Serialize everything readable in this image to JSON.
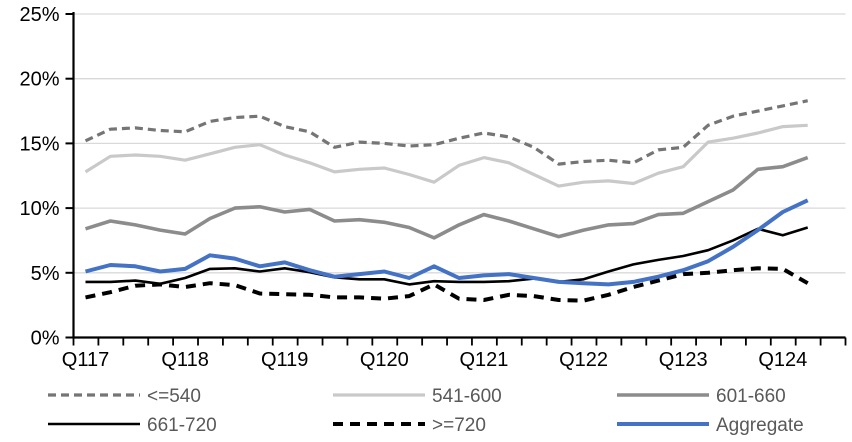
{
  "chart_data": {
    "type": "line",
    "title": "",
    "xlabel": "",
    "ylabel": "",
    "ylim": [
      0,
      25
    ],
    "y_ticks": [
      0,
      5,
      10,
      15,
      20,
      25
    ],
    "y_tick_suffix": "%",
    "grid": "horizontal",
    "legend_position": "bottom",
    "x_tick_labels": [
      "Q117",
      "Q118",
      "Q119",
      "Q120",
      "Q121",
      "Q122",
      "Q123",
      "Q124"
    ],
    "points_per_tick_label": 4,
    "n_points": 30,
    "series": [
      {
        "name": "<=540",
        "color": "#757575",
        "dash": "8 5",
        "width": 3.2,
        "values": [
          15.2,
          16.1,
          16.2,
          16.0,
          15.9,
          16.7,
          17.0,
          17.1,
          16.3,
          15.9,
          14.7,
          15.1,
          15.0,
          14.8,
          14.9,
          15.4,
          15.8,
          15.5,
          14.7,
          13.4,
          13.6,
          13.7,
          13.5,
          14.5,
          14.7,
          16.4,
          17.1,
          17.5,
          17.9,
          18.3
        ]
      },
      {
        "name": "541-600",
        "color": "#c9c9c9",
        "dash": null,
        "width": 3.2,
        "values": [
          12.8,
          14.0,
          14.1,
          14.0,
          13.7,
          14.2,
          14.7,
          14.9,
          14.1,
          13.5,
          12.8,
          13.0,
          13.1,
          12.6,
          12.0,
          13.3,
          13.9,
          13.5,
          12.6,
          11.7,
          12.0,
          12.1,
          11.9,
          12.7,
          13.2,
          15.1,
          15.4,
          15.8,
          16.3,
          16.4
        ]
      },
      {
        "name": "601-660",
        "color": "#8c8c8c",
        "dash": null,
        "width": 3.6,
        "values": [
          8.4,
          9.0,
          8.7,
          8.3,
          8.0,
          9.2,
          10.0,
          10.1,
          9.7,
          9.9,
          9.0,
          9.1,
          8.9,
          8.5,
          7.7,
          8.7,
          9.5,
          9.0,
          8.4,
          7.8,
          8.3,
          8.7,
          8.8,
          9.5,
          9.6,
          10.5,
          11.4,
          13.0,
          13.2,
          13.9
        ]
      },
      {
        "name": "661-720",
        "color": "#000000",
        "dash": null,
        "width": 2.6,
        "values": [
          4.3,
          4.3,
          4.4,
          4.15,
          4.6,
          5.3,
          5.35,
          5.1,
          5.35,
          5.05,
          4.65,
          4.5,
          4.5,
          4.1,
          4.35,
          4.3,
          4.3,
          4.35,
          4.55,
          4.3,
          4.5,
          5.1,
          5.65,
          6.0,
          6.3,
          6.75,
          7.5,
          8.4,
          7.9,
          8.5
        ]
      },
      {
        "name": ">=720",
        "color": "#000000",
        "dash": "10 7",
        "width": 4,
        "values": [
          3.1,
          3.5,
          4.0,
          4.1,
          3.9,
          4.2,
          4.05,
          3.4,
          3.35,
          3.3,
          3.1,
          3.1,
          3.0,
          3.2,
          4.1,
          3.0,
          2.9,
          3.3,
          3.2,
          2.9,
          2.85,
          3.3,
          3.9,
          4.4,
          4.9,
          5.0,
          5.2,
          5.35,
          5.3,
          4.2
        ]
      },
      {
        "name": "Aggregate",
        "color": "#4472c4",
        "dash": null,
        "width": 4,
        "values": [
          5.1,
          5.6,
          5.5,
          5.1,
          5.3,
          6.35,
          6.1,
          5.5,
          5.8,
          5.2,
          4.7,
          4.9,
          5.1,
          4.6,
          5.5,
          4.6,
          4.8,
          4.9,
          4.6,
          4.3,
          4.2,
          4.1,
          4.3,
          4.7,
          5.2,
          5.9,
          7.0,
          8.3,
          9.7,
          10.6
        ]
      }
    ]
  },
  "style_colors": {
    "gridline": "#d9d9d9",
    "axis": "#000000",
    "tick_label": "#000000",
    "legend_text": "#595959",
    "background": "#ffffff"
  }
}
